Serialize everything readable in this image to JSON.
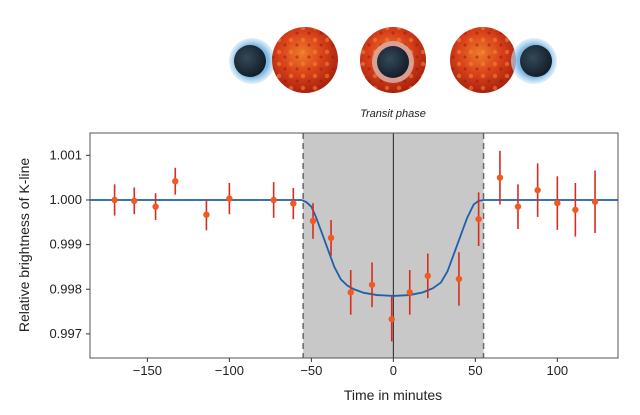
{
  "illustration": {
    "caption": "Transit phase",
    "star_color": "#d03a12",
    "planet_color": "#1e2e3c",
    "halo_color": "#8fc3e8"
  },
  "chart_data": {
    "type": "scatter",
    "title": "",
    "xlabel": "Time in minutes",
    "ylabel": "Relative brightness of K-line",
    "xlim": [
      -185,
      137
    ],
    "ylim": [
      0.99646,
      1.0015
    ],
    "xticks": [
      -150,
      -100,
      -50,
      0,
      50,
      100
    ],
    "xtick_labels": [
      "−150",
      "−100",
      "−50",
      "0",
      "50",
      "100"
    ],
    "yticks": [
      1.001,
      1.0,
      0.999,
      0.998,
      0.997
    ],
    "ytick_labels": [
      "1.001",
      "1.000",
      "0.999",
      "0.998",
      "0.997"
    ],
    "grid": false,
    "transit_shading": {
      "start": -55,
      "end": 55,
      "color": "#c8c8c8"
    },
    "mid_transit_line": 0,
    "points": {
      "color": "#f05a22",
      "errorbar_color": "#d92b1c",
      "x": [
        -170,
        -158,
        -145,
        -133,
        -114,
        -100,
        -73,
        -61,
        -49,
        -38,
        -26,
        -13,
        -1,
        10,
        21,
        40,
        52,
        65,
        76,
        88,
        100,
        111,
        123
      ],
      "y": [
        1.0,
        0.99998,
        0.99985,
        1.00042,
        0.99967,
        1.00003,
        1.0,
        0.99992,
        0.99953,
        0.99915,
        0.99793,
        0.9981,
        0.99733,
        0.99793,
        0.9983,
        0.99823,
        0.99957,
        1.0005,
        0.99985,
        1.00022,
        0.99993,
        0.99978,
        0.99996
      ],
      "yerr": [
        0.00035,
        0.0003,
        0.0003,
        0.0003,
        0.00035,
        0.00035,
        0.0004,
        0.00035,
        0.0004,
        0.0004,
        0.0005,
        0.0005,
        0.0005,
        0.0005,
        0.0005,
        0.0006,
        0.0006,
        0.0006,
        0.0005,
        0.0006,
        0.0006,
        0.0006,
        0.0007
      ]
    },
    "model": {
      "color": "#1f5fa8",
      "x": [
        -185,
        -56,
        -53,
        -50,
        -47,
        -44,
        -40,
        -36,
        -32,
        -28,
        -24,
        -18,
        -10,
        0,
        10,
        18,
        24,
        29,
        33,
        37,
        41,
        45,
        49,
        52,
        55,
        57,
        137
      ],
      "y": [
        1.0,
        1.0,
        0.99995,
        0.99985,
        0.9996,
        0.9993,
        0.9989,
        0.9985,
        0.99822,
        0.99808,
        0.998,
        0.99792,
        0.99787,
        0.99785,
        0.99787,
        0.99793,
        0.99802,
        0.99815,
        0.9984,
        0.9988,
        0.9992,
        0.9996,
        0.9999,
        0.99998,
        1.0,
        1.0,
        1.0
      ]
    }
  }
}
